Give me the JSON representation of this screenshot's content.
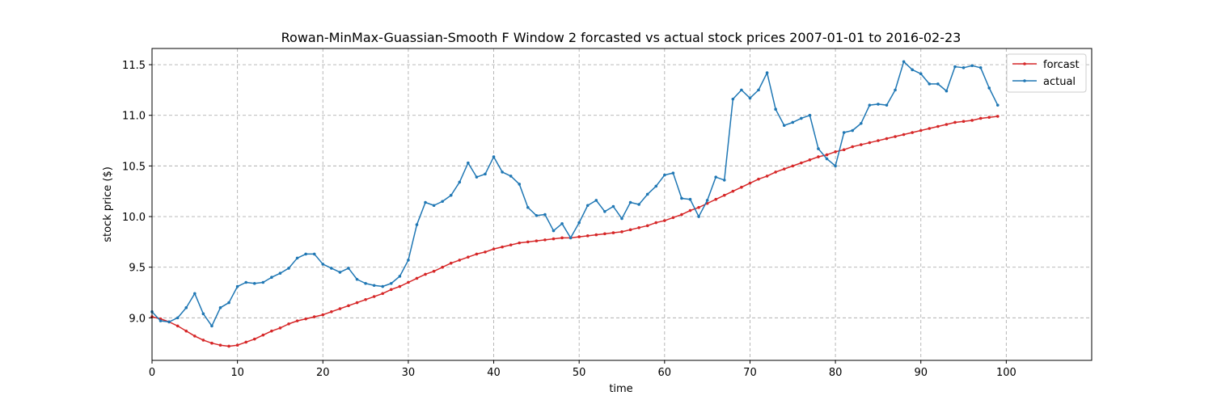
{
  "chart_data": {
    "type": "line",
    "title": "Rowan-MinMax-Guassian-Smooth F Window 2 forcasted vs actual stock prices 2007-01-01 to 2016-02-23",
    "xlabel": "time",
    "ylabel": "stock price ($)",
    "xlim": [
      0,
      110
    ],
    "ylim": [
      8.58,
      11.66
    ],
    "xticks": [
      0,
      10,
      20,
      30,
      40,
      50,
      60,
      70,
      80,
      90,
      100
    ],
    "yticks": [
      9.0,
      9.5,
      10.0,
      10.5,
      11.0,
      11.5
    ],
    "grid": true,
    "legend_position": "top-right",
    "series": [
      {
        "name": "forcast",
        "color": "#d62728",
        "values": [
          9.01,
          8.99,
          8.96,
          8.92,
          8.87,
          8.82,
          8.78,
          8.75,
          8.73,
          8.72,
          8.73,
          8.76,
          8.79,
          8.83,
          8.87,
          8.9,
          8.94,
          8.97,
          8.99,
          9.01,
          9.03,
          9.06,
          9.09,
          9.12,
          9.15,
          9.18,
          9.21,
          9.24,
          9.28,
          9.31,
          9.35,
          9.39,
          9.43,
          9.46,
          9.5,
          9.54,
          9.57,
          9.6,
          9.63,
          9.65,
          9.68,
          9.7,
          9.72,
          9.74,
          9.75,
          9.76,
          9.77,
          9.78,
          9.79,
          9.79,
          9.8,
          9.81,
          9.82,
          9.83,
          9.84,
          9.85,
          9.87,
          9.89,
          9.91,
          9.94,
          9.96,
          9.99,
          10.02,
          10.06,
          10.09,
          10.13,
          10.17,
          10.21,
          10.25,
          10.29,
          10.33,
          10.37,
          10.4,
          10.44,
          10.47,
          10.5,
          10.53,
          10.56,
          10.59,
          10.61,
          10.64,
          10.66,
          10.69,
          10.71,
          10.73,
          10.75,
          10.77,
          10.79,
          10.81,
          10.83,
          10.85,
          10.87,
          10.89,
          10.91,
          10.93,
          10.94,
          10.95,
          10.97,
          10.98,
          10.99
        ]
      },
      {
        "name": "actual",
        "color": "#1f77b4",
        "values": [
          9.06,
          8.97,
          8.96,
          9.0,
          9.1,
          9.24,
          9.04,
          8.92,
          9.1,
          9.15,
          9.31,
          9.35,
          9.34,
          9.35,
          9.4,
          9.44,
          9.49,
          9.59,
          9.63,
          9.63,
          9.53,
          9.49,
          9.45,
          9.49,
          9.38,
          9.34,
          9.32,
          9.31,
          9.34,
          9.41,
          9.57,
          9.92,
          10.14,
          10.11,
          10.15,
          10.21,
          10.34,
          10.53,
          10.39,
          10.42,
          10.59,
          10.44,
          10.4,
          10.32,
          10.09,
          10.01,
          10.02,
          9.86,
          9.93,
          9.79,
          9.94,
          10.11,
          10.16,
          10.05,
          10.1,
          9.98,
          10.14,
          10.12,
          10.22,
          10.3,
          10.41,
          10.43,
          10.18,
          10.17,
          10.0,
          10.16,
          10.39,
          10.36,
          11.16,
          11.25,
          11.17,
          11.25,
          11.42,
          11.06,
          10.9,
          10.93,
          10.97,
          11.0,
          10.67,
          10.57,
          10.5,
          10.83,
          10.85,
          10.92,
          11.1,
          11.11,
          11.1,
          11.25,
          11.53,
          11.45,
          11.41,
          11.31,
          11.31,
          11.24,
          11.48,
          11.47,
          11.49,
          11.47,
          11.27,
          11.1
        ]
      }
    ]
  }
}
